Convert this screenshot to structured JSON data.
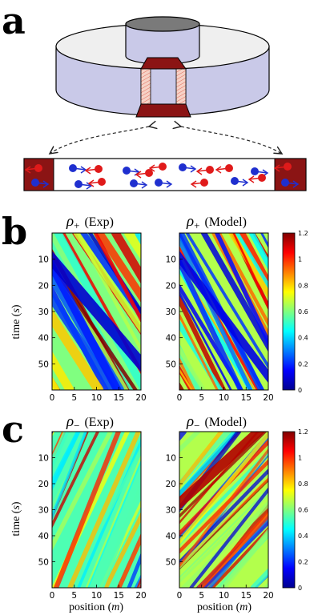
{
  "labels": {
    "a": "a",
    "b": "b",
    "c": "c"
  },
  "row_b": {
    "left_title_sym": "ρ",
    "left_title_sub": "+",
    "left_title_tag": "(Exp)",
    "right_title_sym": "ρ",
    "right_title_sub": "+",
    "right_title_tag": "(Model)"
  },
  "row_c": {
    "left_title_sym": "ρ",
    "left_title_sub": "−",
    "left_title_tag": "(Exp)",
    "right_title_sym": "ρ",
    "right_title_sub": "−",
    "right_title_tag": "(Model)"
  },
  "ylabel": {
    "pre": "time (",
    "var": "s",
    "post": ")"
  },
  "xlabel": {
    "pre": "position (",
    "var": "m",
    "post": ")"
  },
  "colors": {
    "high": "#a50026",
    "mid": "#e6f21c",
    "low": "#08107e",
    "tube_fill": "#c9c9e8",
    "wall": "#8b1414",
    "red_particle": "#e01a1a",
    "blue_particle": "#1f2fcf"
  },
  "chart_data": [
    {
      "type": "heatmap",
      "panel": "b-left",
      "title": "ρ+ (Exp)",
      "xlabel": "",
      "ylabel": "time (s)",
      "xlim": [
        0,
        20
      ],
      "ylim": [
        60,
        0
      ],
      "xticks": [
        "0",
        "5",
        "10",
        "15",
        "20"
      ],
      "yticks": [
        "10",
        "20",
        "30",
        "40",
        "50"
      ]
    },
    {
      "type": "heatmap",
      "panel": "b-right",
      "title": "ρ+ (Model)",
      "xlabel": "",
      "ylabel": "",
      "xlim": [
        0,
        20
      ],
      "ylim": [
        60,
        0
      ],
      "xticks": [
        "0",
        "5",
        "10",
        "15",
        "20"
      ],
      "yticks": [
        "10",
        "20",
        "30",
        "40",
        "50"
      ],
      "colorbar": [
        "1.2",
        "1",
        "0.8",
        "0.6",
        "0.4",
        "0.2",
        "0"
      ]
    },
    {
      "type": "heatmap",
      "panel": "c-left",
      "title": "ρ− (Exp)",
      "xlabel": "position (m)",
      "ylabel": "time (s)",
      "xlim": [
        0,
        20
      ],
      "ylim": [
        60,
        0
      ],
      "xticks": [
        "0",
        "5",
        "10",
        "15",
        "20"
      ],
      "yticks": [
        "10",
        "20",
        "30",
        "40",
        "50"
      ]
    },
    {
      "type": "heatmap",
      "panel": "c-right",
      "title": "ρ− (Model)",
      "xlabel": "position (m)",
      "ylabel": "",
      "xlim": [
        0,
        20
      ],
      "ylim": [
        60,
        0
      ],
      "xticks": [
        "0",
        "5",
        "10",
        "15",
        "20"
      ],
      "yticks": [
        "10",
        "20",
        "30",
        "40",
        "50"
      ],
      "colorbar": [
        "1.2",
        "1",
        "0.8",
        "0.6",
        "0.4",
        "0.2",
        "0"
      ]
    }
  ]
}
